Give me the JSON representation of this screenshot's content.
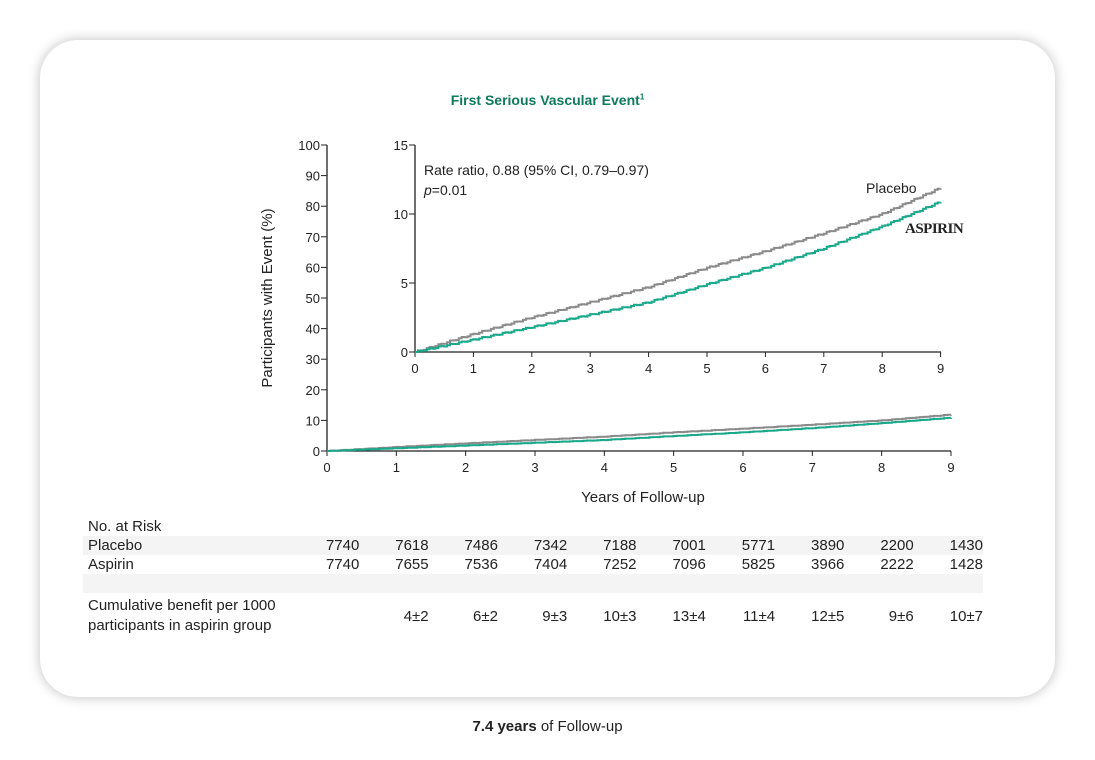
{
  "chart_data": {
    "type": "line",
    "title": "First Serious Vascular Event",
    "title_superscript": "1",
    "xlabel": "Years of Follow-up",
    "ylabel": "Participants with Event (%)",
    "xlim": [
      0,
      9
    ],
    "ylim": [
      0,
      100
    ],
    "xticks": [
      0,
      1,
      2,
      3,
      4,
      5,
      6,
      7,
      8,
      9
    ],
    "yticks": [
      0,
      10,
      20,
      30,
      40,
      50,
      60,
      70,
      80,
      90,
      100
    ],
    "colors": {
      "placebo": "#8a8a8a",
      "aspirin": "#1aa88a",
      "title": "#0e7a5c"
    },
    "series": [
      {
        "name": "Placebo",
        "x": [
          0,
          1,
          2,
          3,
          4,
          5,
          6,
          7,
          8,
          9
        ],
        "values": [
          0,
          1.3,
          2.5,
          3.6,
          4.7,
          6.1,
          7.3,
          8.6,
          10.0,
          11.9
        ]
      },
      {
        "name": "Aspirin",
        "x": [
          0,
          1,
          2,
          3,
          4,
          5,
          6,
          7,
          8,
          9
        ],
        "values": [
          0,
          0.9,
          1.8,
          2.7,
          3.6,
          4.9,
          6.1,
          7.5,
          9.1,
          10.9
        ]
      }
    ],
    "inset": {
      "xlim": [
        0,
        9
      ],
      "ylim": [
        0,
        15
      ],
      "yticks": [
        0,
        5,
        10,
        15
      ],
      "xticks": [
        0,
        1,
        2,
        3,
        4,
        5,
        6,
        7,
        8,
        9
      ],
      "annotation_line1": "Rate ratio, 0.88 (95% CI, 0.79–0.97)",
      "p_label": "p",
      "p_value": "=0.01",
      "placebo_label": "Placebo",
      "aspirin_label": "ASPIRIN"
    }
  },
  "table": {
    "header": "No. at Risk",
    "rows": [
      {
        "label": "Placebo",
        "values": [
          "7740",
          "7618",
          "7486",
          "7342",
          "7188",
          "7001",
          "5771",
          "3890",
          "2200",
          "1430"
        ]
      },
      {
        "label": "Aspirin",
        "values": [
          "7740",
          "7655",
          "7536",
          "7404",
          "7252",
          "7096",
          "5825",
          "3966",
          "2222",
          "1428"
        ]
      }
    ],
    "benefit_label_1": "Cumulative benefit per 1000",
    "benefit_label_2": "participants in aspirin group",
    "benefit": [
      "",
      "4±2",
      "6±2",
      "9±3",
      "10±3",
      "13±4",
      "11±4",
      "12±5",
      "9±6",
      "10±7"
    ]
  },
  "footer": {
    "bold": "7.4 years",
    "rest": " of Follow-up"
  }
}
